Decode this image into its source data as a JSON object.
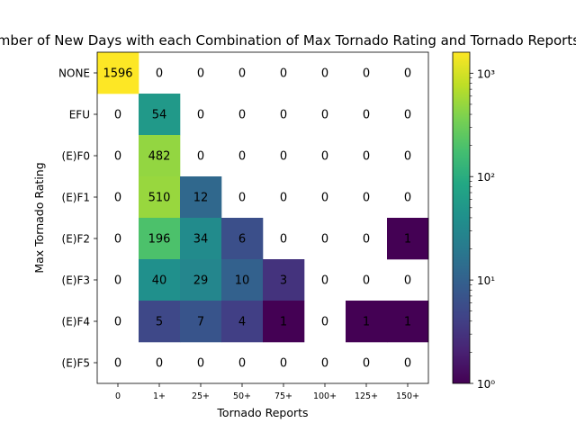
{
  "chart_data": {
    "type": "heatmap",
    "title": "Number of New Days with each Combination of Max Tornado Rating and Tornado Reports",
    "xlabel": "Tornado Reports",
    "ylabel": "Max Tornado Rating",
    "x_categories": [
      "0",
      "1+",
      "25+",
      "50+",
      "75+",
      "100+",
      "125+",
      "150+"
    ],
    "y_categories": [
      "NONE",
      "EFU",
      "(E)F0",
      "(E)F1",
      "(E)F2",
      "(E)F3",
      "(E)F4",
      "(E)F5"
    ],
    "values": [
      [
        1596,
        0,
        0,
        0,
        0,
        0,
        0,
        0
      ],
      [
        0,
        54,
        0,
        0,
        0,
        0,
        0,
        0
      ],
      [
        0,
        482,
        0,
        0,
        0,
        0,
        0,
        0
      ],
      [
        0,
        510,
        12,
        0,
        0,
        0,
        0,
        0
      ],
      [
        0,
        196,
        34,
        6,
        0,
        0,
        0,
        1
      ],
      [
        0,
        40,
        29,
        10,
        3,
        0,
        0,
        0
      ],
      [
        0,
        5,
        7,
        4,
        1,
        0,
        1,
        1
      ],
      [
        0,
        0,
        0,
        0,
        0,
        0,
        0,
        0
      ]
    ],
    "colorscale": "viridis",
    "color_scale_type": "log",
    "color_range": [
      1,
      1596
    ],
    "zero_color": "#ffffff",
    "colorbar": {
      "ticks": [
        {
          "value": 1000,
          "label": "10³"
        },
        {
          "value": 100,
          "label": "10²"
        },
        {
          "value": 10,
          "label": "10¹"
        },
        {
          "value": 1,
          "label": "10⁰"
        }
      ]
    }
  }
}
